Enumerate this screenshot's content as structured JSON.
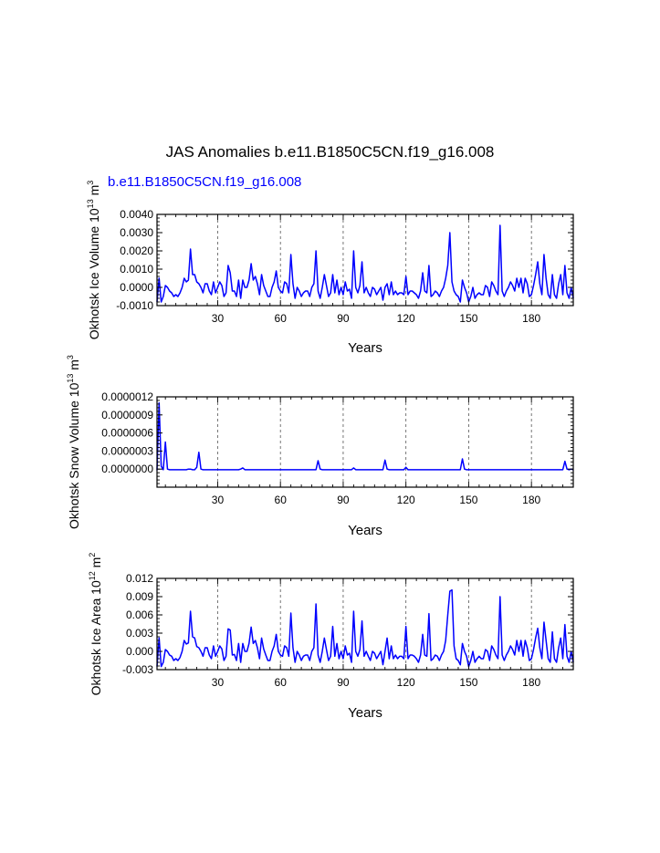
{
  "title": "JAS Anomalies b.e11.B1850C5CN.f19_g16.008",
  "subtitle": "b.e11.B1850C5CN.f19_g16.008",
  "line_color": "#0000ff",
  "chart_data": [
    {
      "type": "line",
      "ylabel": {
        "base": "Okhotsk Ice Volume 10",
        "exp1": "13",
        "mid": " m",
        "exp2": "3"
      },
      "xlabel": "Years",
      "xlim": [
        1,
        200
      ],
      "xticks": [
        30,
        60,
        90,
        120,
        150,
        180
      ],
      "ylim": [
        -0.001,
        0.004
      ],
      "yticks": [
        -0.001,
        0.0,
        0.001,
        0.002,
        0.003,
        0.004
      ],
      "ytick_labels": [
        "-0.0010",
        "0.0000",
        "0.0010",
        "0.0020",
        "0.0030",
        "0.0040"
      ],
      "grid_x": true,
      "series": [
        {
          "name": "b.e11.B1850C5CN.f19_g16.008",
          "values": [
            -0.0008,
            0.0005,
            -0.0008,
            -0.0005,
            0.0001,
            0.0,
            -0.0002,
            -0.0003,
            -0.0005,
            -0.0004,
            -0.0005,
            -0.0003,
            0.0,
            0.0005,
            0.0003,
            0.0004,
            0.0021,
            0.0007,
            0.0007,
            0.0003,
            0.0002,
            0.0,
            -0.0003,
            0.0002,
            0.0002,
            -0.0002,
            -0.0004,
            0.0003,
            -0.0003,
            0.0,
            0.0003,
            0.0001,
            -0.0005,
            -0.0003,
            0.0012,
            0.0008,
            -0.0002,
            -0.0002,
            -0.0005,
            0.0004,
            -0.0006,
            0.0004,
            0.0,
            0.0,
            0.0004,
            0.0013,
            0.0004,
            0.0006,
            0.0002,
            -0.0004,
            0.0007,
            0.0001,
            -0.0002,
            -0.0005,
            -0.0005,
            0.0,
            0.0003,
            0.0009,
            0.0,
            -0.0002,
            -0.0003,
            0.0003,
            0.0002,
            -0.0003,
            0.0018,
            0.0002,
            -0.0006,
            0.0,
            -0.0002,
            -0.0005,
            -0.0003,
            -0.0002,
            -0.0002,
            -0.0005,
            0.0,
            0.0002,
            0.002,
            -0.0002,
            -0.0006,
            0.0,
            0.0007,
            0.0001,
            -0.0005,
            -0.0003,
            0.0007,
            -0.0003,
            0.0004,
            -0.0004,
            0.0,
            -0.0004,
            0.0003,
            -0.0002,
            -0.0001,
            -0.0006,
            0.002,
            0.0,
            -0.0003,
            0.0001,
            0.0014,
            -0.0003,
            0.0,
            -0.0003,
            -0.0005,
            0.0,
            -0.0001,
            -0.0004,
            -0.0002,
            0.0,
            -0.0007,
            0.0,
            0.0002,
            -0.0004,
            0.0003,
            -0.0004,
            -0.0002,
            -0.0004,
            -0.0003,
            -0.0003,
            -0.0004,
            0.0006,
            -0.0004,
            -0.0002,
            -0.0002,
            -0.0003,
            -0.0004,
            -0.0006,
            -0.0002,
            0.0008,
            -0.0002,
            -0.0003,
            0.0012,
            -0.0005,
            -0.0004,
            -0.0002,
            -0.0003,
            -0.0005,
            -0.0002,
            0.0,
            0.0005,
            0.0012,
            0.003,
            0.0003,
            -0.0002,
            -0.0004,
            -0.0005,
            -0.0008,
            0.0004,
            0.0,
            -0.0003,
            -0.0008,
            -0.0005,
            0.0,
            -0.0006,
            -0.0004,
            -0.0003,
            -0.0004,
            -0.0004,
            0.0001,
            0.0,
            -0.0005,
            0.0003,
            0.0001,
            -0.0002,
            -0.0004,
            0.0034,
            -0.0002,
            -0.0005,
            -0.0002,
            0.0,
            0.0003,
            0.0001,
            -0.0002,
            0.0005,
            0.0,
            0.0005,
            -0.0003,
            0.0005,
            0.0002,
            -0.0005,
            -0.0004,
            0.0001,
            0.0007,
            0.0014,
            0.0002,
            -0.0004,
            0.0018,
            0.0005,
            -0.0004,
            -0.0006,
            0.0007,
            -0.0004,
            -0.0006,
            0.0002,
            0.0007,
            -0.0004,
            0.0012,
            -0.0003,
            -0.0006,
            0.0,
            -0.0006
          ]
        }
      ]
    },
    {
      "type": "line",
      "ylabel": {
        "base": "Okhotsk Snow Volume 10",
        "exp1": "13",
        "mid": " m",
        "exp2": "3"
      },
      "xlabel": "Years",
      "xlim": [
        1,
        200
      ],
      "xticks": [
        30,
        60,
        90,
        120,
        150,
        180
      ],
      "ylim": [
        -3e-07,
        1.2e-06
      ],
      "yticks": [
        0.0,
        3e-07,
        6e-07,
        9e-07,
        1.2e-06
      ],
      "ytick_labels": [
        "0.0000000",
        "0.0000003",
        "0.0000006",
        "0.0000009",
        "0.0000012"
      ],
      "grid_x": true,
      "series": [
        {
          "name": "b.e11.B1850C5CN.f19_g16.008",
          "values": [
            -2e-08,
            1.1e-06,
            5e-08,
            -1e-08,
            4.5e-07,
            0.0,
            -1e-08,
            -1e-08,
            -1e-08,
            -1e-08,
            -1e-08,
            -1e-08,
            -1e-08,
            -1e-08,
            -1e-08,
            0.0,
            0.0,
            -1e-08,
            -1e-08,
            3e-08,
            2.8e-07,
            0.0,
            -1e-08,
            -1e-08,
            -1e-08,
            -1e-08,
            -1e-08,
            -1e-08,
            -1e-08,
            -1e-08,
            -1e-08,
            -1e-08,
            -1e-08,
            -1e-08,
            -1e-08,
            -1e-08,
            -1e-08,
            -1e-08,
            -1e-08,
            -1e-08,
            0.0,
            2e-08,
            -1e-08,
            -1e-08,
            -1e-08,
            -1e-08,
            -1e-08,
            -1e-08,
            -1e-08,
            -1e-08,
            -1e-08,
            -1e-08,
            -1e-08,
            -1e-08,
            -1e-08,
            -1e-08,
            -1e-08,
            -1e-08,
            -1e-08,
            -1e-08,
            -1e-08,
            -1e-08,
            -1e-08,
            -1e-08,
            -1e-08,
            -1e-08,
            -1e-08,
            -1e-08,
            -1e-08,
            -1e-08,
            -1e-08,
            -1e-08,
            -1e-08,
            -1e-08,
            -1e-08,
            -1e-08,
            -1e-08,
            1.4e-07,
            0.0,
            -1e-08,
            -1e-08,
            -1e-08,
            -1e-08,
            -1e-08,
            -1e-08,
            -1e-08,
            -1e-08,
            -1e-08,
            -1e-08,
            -1e-08,
            -1e-08,
            -1e-08,
            -1e-08,
            -1e-08,
            2e-08,
            -1e-08,
            -1e-08,
            -1e-08,
            -1e-08,
            -1e-08,
            -1e-08,
            -1e-08,
            -1e-08,
            -1e-08,
            -1e-08,
            -1e-08,
            -1e-08,
            -1e-08,
            -1e-08,
            1.5e-07,
            0.0,
            -1e-08,
            -1e-08,
            -1e-08,
            -1e-08,
            -1e-08,
            -1e-08,
            -1e-08,
            -1e-08,
            3e-08,
            -1e-08,
            -1e-08,
            -1e-08,
            -1e-08,
            -1e-08,
            -1e-08,
            -1e-08,
            -1e-08,
            -1e-08,
            -1e-08,
            -1e-08,
            -1e-08,
            -1e-08,
            -1e-08,
            -1e-08,
            -1e-08,
            -1e-08,
            -1e-08,
            -1e-08,
            -1e-08,
            -1e-08,
            -1e-08,
            -1e-08,
            -1e-08,
            -1e-08,
            -1e-08,
            1.7e-07,
            0.0,
            -1e-08,
            -1e-08,
            -1e-08,
            -1e-08,
            -1e-08,
            -1e-08,
            -1e-08,
            -1e-08,
            -1e-08,
            -1e-08,
            -1e-08,
            -1e-08,
            -1e-08,
            -1e-08,
            -1e-08,
            -1e-08,
            -1e-08,
            -1e-08,
            -1e-08,
            -1e-08,
            -1e-08,
            -1e-08,
            -1e-08,
            -1e-08,
            -1e-08,
            -1e-08,
            -1e-08,
            -1e-08,
            -1e-08,
            -1e-08,
            -1e-08,
            -1e-08,
            -1e-08,
            -1e-08,
            -1e-08,
            -1e-08,
            -1e-08,
            -1e-08,
            -1e-08,
            -1e-08,
            -1e-08,
            -1e-08,
            -1e-08,
            -1e-08,
            -1e-08,
            -1e-08,
            -1e-08,
            1.3e-07,
            0.0,
            -1e-08,
            0.0,
            -1e-08
          ]
        }
      ]
    },
    {
      "type": "line",
      "ylabel": {
        "base": "Okhotsk Ice Area 10",
        "exp1": "12",
        "mid": " m",
        "exp2": "2"
      },
      "xlabel": "Years",
      "xlim": [
        1,
        200
      ],
      "xticks": [
        30,
        60,
        90,
        120,
        150,
        180
      ],
      "ylim": [
        -0.003,
        0.012
      ],
      "yticks": [
        -0.003,
        0.0,
        0.003,
        0.006,
        0.009,
        0.012
      ],
      "ytick_labels": [
        "-0.003",
        "0.000",
        "0.003",
        "0.006",
        "0.009",
        "0.012"
      ],
      "grid_x": true,
      "series": [
        {
          "name": "b.e11.B1850C5CN.f19_g16.008",
          "values": [
            -0.0025,
            0.0022,
            -0.0025,
            -0.0018,
            0.0003,
            0.0,
            -0.0006,
            -0.0008,
            -0.0015,
            -0.0012,
            -0.0015,
            -0.001,
            0.0,
            0.0018,
            0.0012,
            0.0014,
            0.0066,
            0.0024,
            0.0022,
            0.0008,
            0.0006,
            0.0,
            -0.0008,
            0.0006,
            0.0006,
            -0.0006,
            -0.0012,
            0.0009,
            -0.0008,
            0.0,
            0.0009,
            0.0004,
            -0.0015,
            -0.0008,
            0.0037,
            0.0035,
            -0.0006,
            -0.0005,
            -0.0015,
            0.0013,
            -0.0018,
            0.0013,
            0.0,
            0.0,
            0.0013,
            0.004,
            0.0013,
            0.0018,
            0.0006,
            -0.0012,
            0.0022,
            0.0004,
            -0.0006,
            -0.0015,
            -0.0015,
            0.0,
            0.0009,
            0.0028,
            0.0,
            -0.0006,
            -0.0008,
            0.0009,
            0.0006,
            -0.0008,
            0.0063,
            0.0006,
            -0.0018,
            0.0,
            -0.0006,
            -0.0015,
            -0.0008,
            -0.0006,
            -0.0006,
            -0.0015,
            0.0,
            0.0006,
            0.0078,
            -0.0006,
            -0.0018,
            0.0,
            0.0022,
            0.0003,
            -0.0015,
            -0.0008,
            0.0041,
            -0.0008,
            0.0013,
            -0.0012,
            0.0,
            -0.0012,
            0.0009,
            -0.0006,
            -0.0003,
            -0.0018,
            0.0066,
            0.0,
            -0.0008,
            0.0003,
            0.005,
            -0.0008,
            0.0,
            -0.0008,
            -0.0015,
            0.0,
            -0.0003,
            -0.0012,
            -0.0006,
            0.0,
            -0.0022,
            0.0,
            0.0022,
            -0.0012,
            0.0009,
            -0.0012,
            -0.0006,
            -0.0012,
            -0.0008,
            -0.0008,
            -0.0012,
            0.0041,
            -0.0012,
            -0.0006,
            -0.0006,
            -0.0008,
            -0.0012,
            -0.0018,
            -0.0006,
            0.0028,
            -0.0006,
            -0.0008,
            0.0062,
            -0.0015,
            -0.0012,
            -0.0006,
            -0.0008,
            -0.0015,
            -0.0006,
            0.0,
            0.0018,
            0.006,
            0.0099,
            0.0101,
            0.0009,
            -0.0012,
            -0.0015,
            -0.0022,
            0.0013,
            0.0,
            -0.0008,
            -0.0025,
            -0.0015,
            0.0,
            -0.0018,
            -0.0012,
            -0.0008,
            -0.0012,
            -0.0012,
            0.0003,
            0.0,
            -0.0015,
            0.0009,
            0.0003,
            -0.0006,
            -0.0012,
            0.009,
            -0.0006,
            -0.0015,
            -0.0006,
            0.0,
            0.0009,
            0.0003,
            -0.0006,
            0.0018,
            0.0,
            0.0018,
            -0.0008,
            0.0018,
            0.0006,
            -0.0015,
            -0.0012,
            0.0003,
            0.0022,
            0.0038,
            0.0006,
            -0.0012,
            0.0048,
            0.0018,
            -0.0012,
            -0.0018,
            0.0032,
            -0.0012,
            -0.0018,
            0.0006,
            0.0022,
            -0.0012,
            0.0044,
            -0.0008,
            -0.0018,
            0.0,
            -0.0018
          ]
        }
      ]
    }
  ]
}
